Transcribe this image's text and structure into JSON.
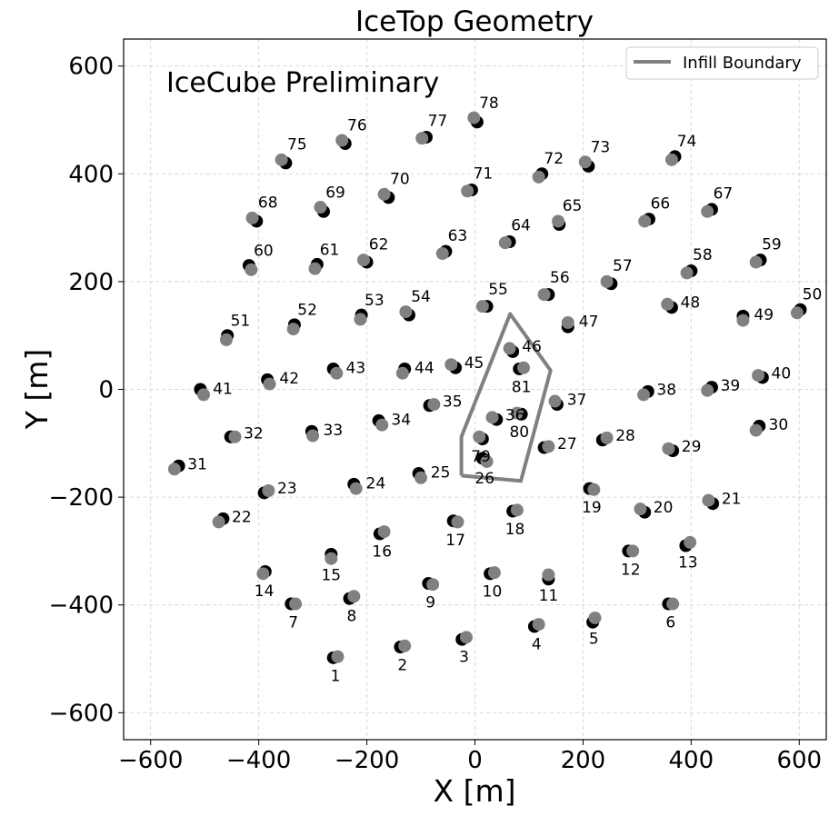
{
  "chart_data": {
    "type": "scatter",
    "title": "IceTop Geometry",
    "xlabel": "X [m]",
    "ylabel": "Y [m]",
    "xlim": [
      -650,
      650
    ],
    "ylim": [
      -650,
      650
    ],
    "xticks": [
      -600,
      -400,
      -200,
      0,
      200,
      400,
      600
    ],
    "yticks": [
      -600,
      -400,
      -200,
      0,
      200,
      400,
      600
    ],
    "tick_labels": [
      "−600",
      "−400",
      "−200",
      "0",
      "200",
      "400",
      "600"
    ],
    "grid": true,
    "legend_position": "top-right",
    "annotation": {
      "text": "IceCube Preliminary",
      "color": "#ff2a00"
    },
    "boundary": {
      "name": "Infill Boundary",
      "color": "#808080",
      "x": [
        -25,
        -25,
        65,
        140,
        85,
        -25
      ],
      "y": [
        -160,
        -88,
        140,
        35,
        -170,
        -160
      ]
    },
    "tank_colors": {
      "tank_a": "#000000",
      "tank_b": "#808080"
    },
    "stations": [
      {
        "id": "1",
        "x": -262,
        "y": -498,
        "bx": -254,
        "by": -496
      },
      {
        "id": "2",
        "x": -138,
        "y": -478,
        "bx": -130,
        "by": -476
      },
      {
        "id": "3",
        "x": -24,
        "y": -464,
        "bx": -16,
        "by": -460
      },
      {
        "id": "4",
        "x": 110,
        "y": -440,
        "bx": 118,
        "by": -436
      },
      {
        "id": "5",
        "x": 218,
        "y": -432,
        "bx": 222,
        "by": -424
      },
      {
        "id": "6",
        "x": 358,
        "y": -398,
        "bx": 366,
        "by": -398
      },
      {
        "id": "7",
        "x": -340,
        "y": -398,
        "bx": -332,
        "by": -398
      },
      {
        "id": "8",
        "x": -232,
        "y": -388,
        "bx": -224,
        "by": -384
      },
      {
        "id": "9",
        "x": -86,
        "y": -360,
        "bx": -78,
        "by": -362
      },
      {
        "id": "10",
        "x": 28,
        "y": -342,
        "bx": 36,
        "by": -340
      },
      {
        "id": "11",
        "x": 136,
        "y": -352,
        "bx": 136,
        "by": -344
      },
      {
        "id": "12",
        "x": 284,
        "y": -300,
        "bx": 292,
        "by": -300
      },
      {
        "id": "13",
        "x": 390,
        "y": -290,
        "bx": 398,
        "by": -284
      },
      {
        "id": "14",
        "x": -388,
        "y": -338,
        "bx": -392,
        "by": -342
      },
      {
        "id": "15",
        "x": -266,
        "y": -306,
        "bx": -266,
        "by": -314
      },
      {
        "id": "16",
        "x": -176,
        "y": -268,
        "bx": -168,
        "by": -264
      },
      {
        "id": "17",
        "x": -40,
        "y": -244,
        "bx": -32,
        "by": -246
      },
      {
        "id": "18",
        "x": 70,
        "y": -226,
        "bx": 78,
        "by": -224
      },
      {
        "id": "19",
        "x": 212,
        "y": -184,
        "bx": 220,
        "by": -186
      },
      {
        "id": "20",
        "x": 314,
        "y": -228,
        "bx": 306,
        "by": -222
      },
      {
        "id": "21",
        "x": 440,
        "y": -212,
        "bx": 432,
        "by": -206
      },
      {
        "id": "22",
        "x": -466,
        "y": -240,
        "bx": -474,
        "by": -246
      },
      {
        "id": "23",
        "x": -390,
        "y": -192,
        "bx": -382,
        "by": -188
      },
      {
        "id": "24",
        "x": -224,
        "y": -176,
        "bx": -220,
        "by": -184
      },
      {
        "id": "25",
        "x": -104,
        "y": -156,
        "bx": -100,
        "by": -164
      },
      {
        "id": "26",
        "x": 14,
        "y": -128,
        "bx": 22,
        "by": -134
      },
      {
        "id": "27",
        "x": 128,
        "y": -108,
        "bx": 136,
        "by": -106
      },
      {
        "id": "28",
        "x": 236,
        "y": -94,
        "bx": 244,
        "by": -90
      },
      {
        "id": "29",
        "x": 366,
        "y": -114,
        "bx": 358,
        "by": -110
      },
      {
        "id": "30",
        "x": 526,
        "y": -68,
        "bx": 520,
        "by": -76
      },
      {
        "id": "31",
        "x": -548,
        "y": -142,
        "bx": -556,
        "by": -148
      },
      {
        "id": "32",
        "x": -452,
        "y": -88,
        "bx": -444,
        "by": -88
      },
      {
        "id": "33",
        "x": -302,
        "y": -78,
        "bx": -300,
        "by": -86
      },
      {
        "id": "34",
        "x": -178,
        "y": -58,
        "bx": -172,
        "by": -66
      },
      {
        "id": "35",
        "x": -84,
        "y": -30,
        "bx": -76,
        "by": -28
      },
      {
        "id": "36",
        "x": 40,
        "y": -56,
        "bx": 32,
        "by": -52
      },
      {
        "id": "37",
        "x": 152,
        "y": -28,
        "bx": 148,
        "by": -22
      },
      {
        "id": "38",
        "x": 320,
        "y": -4,
        "bx": 312,
        "by": -10
      },
      {
        "id": "39",
        "x": 438,
        "y": 4,
        "bx": 430,
        "by": -2
      },
      {
        "id": "40",
        "x": 532,
        "y": 22,
        "bx": 524,
        "by": 26
      },
      {
        "id": "41",
        "x": -508,
        "y": 0,
        "bx": -502,
        "by": -10
      },
      {
        "id": "42",
        "x": -384,
        "y": 18,
        "bx": -380,
        "by": 10
      },
      {
        "id": "43",
        "x": -262,
        "y": 38,
        "bx": -256,
        "by": 30
      },
      {
        "id": "44",
        "x": -130,
        "y": 38,
        "bx": -134,
        "by": 30
      },
      {
        "id": "45",
        "x": -36,
        "y": 40,
        "bx": -44,
        "by": 46
      },
      {
        "id": "46",
        "x": 70,
        "y": 70,
        "bx": 64,
        "by": 76
      },
      {
        "id": "47",
        "x": 172,
        "y": 116,
        "bx": 172,
        "by": 124
      },
      {
        "id": "48",
        "x": 364,
        "y": 152,
        "bx": 356,
        "by": 158
      },
      {
        "id": "49",
        "x": 496,
        "y": 136,
        "bx": 496,
        "by": 128
      },
      {
        "id": "50",
        "x": 602,
        "y": 148,
        "bx": 596,
        "by": 142
      },
      {
        "id": "51",
        "x": -458,
        "y": 100,
        "bx": -460,
        "by": 92
      },
      {
        "id": "52",
        "x": -334,
        "y": 120,
        "bx": -336,
        "by": 112
      },
      {
        "id": "53",
        "x": -210,
        "y": 138,
        "bx": -212,
        "by": 130
      },
      {
        "id": "54",
        "x": -122,
        "y": 138,
        "bx": -128,
        "by": 144
      },
      {
        "id": "55",
        "x": 22,
        "y": 154,
        "bx": 14,
        "by": 154
      },
      {
        "id": "56",
        "x": 136,
        "y": 176,
        "bx": 128,
        "by": 176
      },
      {
        "id": "57",
        "x": 252,
        "y": 196,
        "bx": 244,
        "by": 200
      },
      {
        "id": "58",
        "x": 400,
        "y": 220,
        "bx": 392,
        "by": 216
      },
      {
        "id": "59",
        "x": 528,
        "y": 240,
        "bx": 520,
        "by": 236
      },
      {
        "id": "60",
        "x": -418,
        "y": 230,
        "bx": -414,
        "by": 222
      },
      {
        "id": "61",
        "x": -292,
        "y": 232,
        "bx": -296,
        "by": 224
      },
      {
        "id": "62",
        "x": -200,
        "y": 236,
        "bx": -206,
        "by": 240
      },
      {
        "id": "63",
        "x": -54,
        "y": 256,
        "bx": -60,
        "by": 252
      },
      {
        "id": "64",
        "x": 64,
        "y": 274,
        "bx": 56,
        "by": 272
      },
      {
        "id": "65",
        "x": 156,
        "y": 306,
        "bx": 154,
        "by": 312
      },
      {
        "id": "66",
        "x": 322,
        "y": 316,
        "bx": 314,
        "by": 312
      },
      {
        "id": "67",
        "x": 438,
        "y": 334,
        "bx": 430,
        "by": 330
      },
      {
        "id": "68",
        "x": -404,
        "y": 312,
        "bx": -412,
        "by": 318
      },
      {
        "id": "69",
        "x": -280,
        "y": 330,
        "bx": -286,
        "by": 338
      },
      {
        "id": "70",
        "x": -160,
        "y": 356,
        "bx": -168,
        "by": 362
      },
      {
        "id": "71",
        "x": -6,
        "y": 370,
        "bx": -14,
        "by": 368
      },
      {
        "id": "72",
        "x": 124,
        "y": 400,
        "bx": 118,
        "by": 394
      },
      {
        "id": "73",
        "x": 210,
        "y": 414,
        "bx": 204,
        "by": 422
      },
      {
        "id": "74",
        "x": 370,
        "y": 432,
        "bx": 364,
        "by": 426
      },
      {
        "id": "75",
        "x": -350,
        "y": 420,
        "bx": -358,
        "by": 426
      },
      {
        "id": "76",
        "x": -240,
        "y": 456,
        "bx": -246,
        "by": 462
      },
      {
        "id": "77",
        "x": -90,
        "y": 468,
        "bx": -98,
        "by": 466
      },
      {
        "id": "78",
        "x": 4,
        "y": 496,
        "bx": -2,
        "by": 504
      },
      {
        "id": "79",
        "x": 14,
        "y": -92,
        "bx": 8,
        "by": -88
      },
      {
        "id": "80",
        "x": 86,
        "y": -46,
        "bx": 78,
        "by": -44
      },
      {
        "id": "81",
        "x": 82,
        "y": 38,
        "bx": 90,
        "by": 40
      }
    ]
  }
}
